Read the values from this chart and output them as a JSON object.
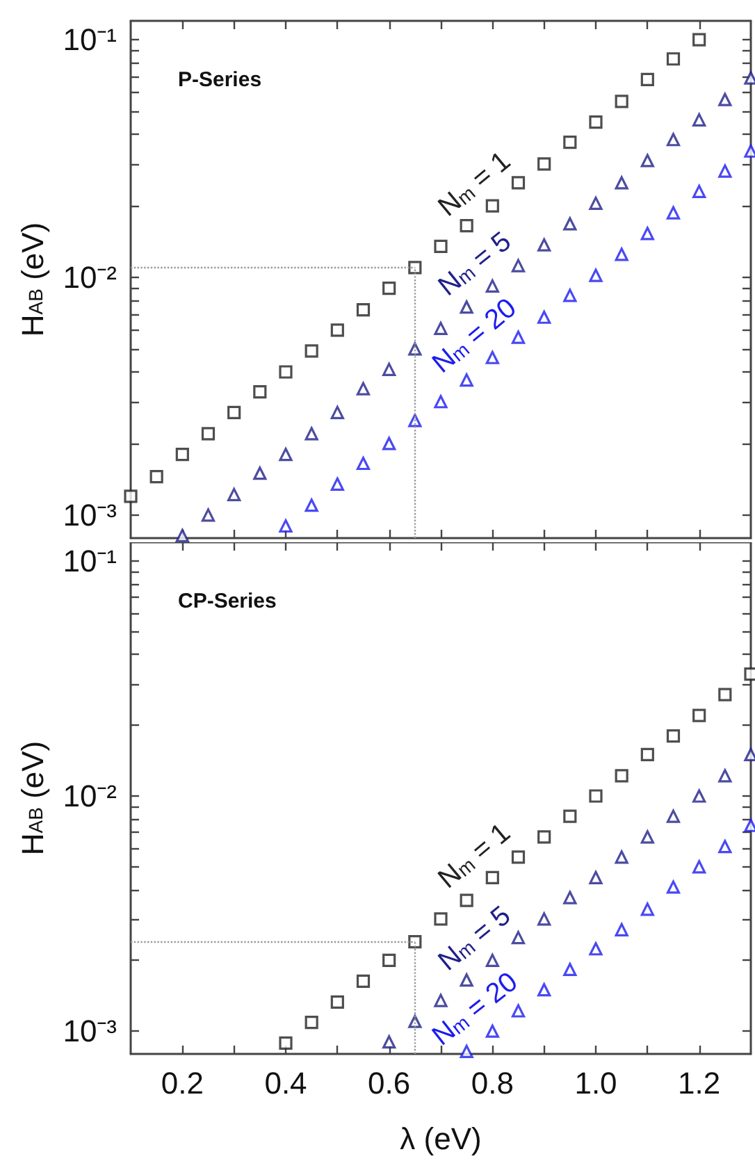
{
  "chart_data": [
    {
      "type": "scatter",
      "title": "P-Series",
      "ylabel": "H$_{AB}$ (eV)",
      "log": "y",
      "tick_labels": "y",
      "xlim": [
        0.1,
        1.3
      ],
      "ylim": [
        0.0008,
        0.12
      ],
      "xticks": [
        {
          "value": 0.2,
          "label": null
        },
        {
          "value": 0.3,
          "label": null
        },
        {
          "value": 0.4,
          "label": null
        },
        {
          "value": 0.5,
          "label": null
        },
        {
          "value": 0.6,
          "label": null
        },
        {
          "value": 0.7,
          "label": null
        },
        {
          "value": 0.8,
          "label": null
        },
        {
          "value": 0.9,
          "label": null
        },
        {
          "value": 1,
          "label": null
        },
        {
          "value": 1.1,
          "label": null
        },
        {
          "value": 1.2,
          "label": null
        }
      ],
      "yticks": [
        {
          "value": 0.001,
          "label": "10⁻³"
        },
        {
          "value": 0.002,
          "label": null
        },
        {
          "value": 0.003,
          "label": null
        },
        {
          "value": 0.004,
          "label": null
        },
        {
          "value": 0.005,
          "label": null
        },
        {
          "value": 0.006,
          "label": null
        },
        {
          "value": 0.007,
          "label": null
        },
        {
          "value": 0.008,
          "label": null
        },
        {
          "value": 0.009,
          "label": null
        },
        {
          "value": 0.01,
          "label": "10⁻²"
        },
        {
          "value": 0.02,
          "label": null
        },
        {
          "value": 0.03,
          "label": null
        },
        {
          "value": 0.04,
          "label": null
        },
        {
          "value": 0.05,
          "label": null
        },
        {
          "value": 0.06,
          "label": null
        },
        {
          "value": 0.07,
          "label": null
        },
        {
          "value": 0.08,
          "label": null
        },
        {
          "value": 0.09,
          "label": null
        },
        {
          "value": 0.1,
          "label": "10⁻¹"
        }
      ],
      "ref_lines": [
        {
          "axis": "x",
          "value": 0.65,
          "color": "#999999",
          "line_style": "dotted"
        },
        {
          "axis": "y",
          "value": 0.011,
          "color": "#999999",
          "line_style": "dotted"
        }
      ],
      "series": [
        {
          "name": "N$_{m}$ = 1",
          "color": "#222222",
          "marker": "square",
          "x": [
            0.1,
            0.15,
            0.2,
            0.25,
            0.3,
            0.35,
            0.4,
            0.45,
            0.5,
            0.55,
            0.6,
            0.65,
            0.7,
            0.75,
            0.8,
            0.85,
            0.9,
            0.95,
            1.0,
            1.05,
            1.1,
            1.15,
            1.2
          ],
          "values": [
            0.0012,
            0.00145,
            0.0018,
            0.0022,
            0.0027,
            0.0033,
            0.004,
            0.0049,
            0.006,
            0.0073,
            0.009,
            0.011,
            0.0135,
            0.0165,
            0.02,
            0.025,
            0.03,
            0.037,
            0.045,
            0.055,
            0.068,
            0.083,
            0.1
          ]
        },
        {
          "name": "N$_{m}$ = 5",
          "color": "#1f1f8a",
          "marker": "triangle",
          "x": [
            0.2,
            0.25,
            0.3,
            0.35,
            0.4,
            0.45,
            0.5,
            0.55,
            0.6,
            0.65,
            0.7,
            0.75,
            0.8,
            0.85,
            0.9,
            0.95,
            1.0,
            1.05,
            1.1,
            1.15,
            1.2,
            1.25,
            1.3
          ],
          "values": [
            0.00082,
            0.001,
            0.00122,
            0.0015,
            0.0018,
            0.0022,
            0.0027,
            0.0034,
            0.0041,
            0.005,
            0.0061,
            0.0075,
            0.0092,
            0.0112,
            0.0137,
            0.0168,
            0.0205,
            0.025,
            0.031,
            0.038,
            0.046,
            0.056,
            0.069
          ]
        },
        {
          "name": "N$_{m}$ = 20",
          "color": "#1c1cf0",
          "marker": "triangle",
          "x": [
            0.4,
            0.45,
            0.5,
            0.55,
            0.6,
            0.65,
            0.7,
            0.75,
            0.8,
            0.85,
            0.9,
            0.95,
            1.0,
            1.05,
            1.1,
            1.15,
            1.2,
            1.25,
            1.3
          ],
          "values": [
            0.0009,
            0.0011,
            0.00135,
            0.00165,
            0.002,
            0.0025,
            0.003,
            0.0037,
            0.0046,
            0.0056,
            0.0068,
            0.0084,
            0.0102,
            0.0125,
            0.0153,
            0.0187,
            0.023,
            0.028,
            0.034
          ]
        }
      ]
    },
    {
      "type": "scatter",
      "title": "CP-Series",
      "xlabel": "λ (eV)",
      "ylabel": "H$_{AB}$ (eV)",
      "log": "y",
      "xlim": [
        0.1,
        1.3
      ],
      "ylim": [
        0.0008,
        0.12
      ],
      "xticks": [
        0.2,
        {
          "value": 0.3,
          "label": null
        },
        0.4,
        {
          "value": 0.5,
          "label": null
        },
        0.6,
        {
          "value": 0.7,
          "label": null
        },
        0.8,
        {
          "value": 0.9,
          "label": null
        },
        {
          "value": 1,
          "label": "1.0"
        },
        {
          "value": 1.1,
          "label": null
        },
        1.2
      ],
      "yticks": [
        {
          "value": 0.001,
          "label": "10⁻³"
        },
        {
          "value": 0.002,
          "label": null
        },
        {
          "value": 0.003,
          "label": null
        },
        {
          "value": 0.004,
          "label": null
        },
        {
          "value": 0.005,
          "label": null
        },
        {
          "value": 0.006,
          "label": null
        },
        {
          "value": 0.007,
          "label": null
        },
        {
          "value": 0.008,
          "label": null
        },
        {
          "value": 0.009,
          "label": null
        },
        {
          "value": 0.01,
          "label": "10⁻²"
        },
        {
          "value": 0.02,
          "label": null
        },
        {
          "value": 0.03,
          "label": null
        },
        {
          "value": 0.04,
          "label": null
        },
        {
          "value": 0.05,
          "label": null
        },
        {
          "value": 0.06,
          "label": null
        },
        {
          "value": 0.07,
          "label": null
        },
        {
          "value": 0.08,
          "label": null
        },
        {
          "value": 0.09,
          "label": null
        },
        {
          "value": 0.1,
          "label": "10⁻¹"
        }
      ],
      "ref_lines": [
        {
          "axis": "x",
          "value": 0.65,
          "color": "#999999",
          "line_style": "dotted"
        },
        {
          "axis": "y",
          "value": 0.0024,
          "color": "#999999",
          "line_style": "dotted"
        }
      ],
      "series": [
        {
          "name": "N$_{m}$ = 1",
          "color": "#222222",
          "marker": "square",
          "x": [
            0.4,
            0.45,
            0.5,
            0.55,
            0.6,
            0.65,
            0.7,
            0.75,
            0.8,
            0.85,
            0.9,
            0.95,
            1.0,
            1.05,
            1.1,
            1.15,
            1.2,
            1.25,
            1.3
          ],
          "values": [
            0.00089,
            0.00109,
            0.00133,
            0.00163,
            0.002,
            0.0024,
            0.003,
            0.0036,
            0.0045,
            0.0055,
            0.0067,
            0.0082,
            0.01,
            0.0122,
            0.015,
            0.018,
            0.022,
            0.027,
            0.033
          ]
        },
        {
          "name": "N$_{m}$ = 5",
          "color": "#1f1f8a",
          "marker": "triangle",
          "x": [
            0.6,
            0.65,
            0.7,
            0.75,
            0.8,
            0.85,
            0.9,
            0.95,
            1.0,
            1.05,
            1.1,
            1.15,
            1.2,
            1.25,
            1.3
          ],
          "values": [
            0.0009,
            0.0011,
            0.00135,
            0.00165,
            0.002,
            0.0025,
            0.003,
            0.0037,
            0.0045,
            0.0055,
            0.0067,
            0.0082,
            0.01,
            0.0122,
            0.015
          ]
        },
        {
          "name": "N$_{m}$ = 20",
          "color": "#1c1cf0",
          "marker": "triangle",
          "x": [
            0.75,
            0.8,
            0.85,
            0.9,
            0.95,
            1.0,
            1.05,
            1.1,
            1.15,
            1.2,
            1.25,
            1.3
          ],
          "values": [
            0.00082,
            0.001,
            0.00122,
            0.0015,
            0.00183,
            0.00224,
            0.0027,
            0.0033,
            0.0041,
            0.005,
            0.0061,
            0.0075
          ]
        }
      ]
    }
  ]
}
